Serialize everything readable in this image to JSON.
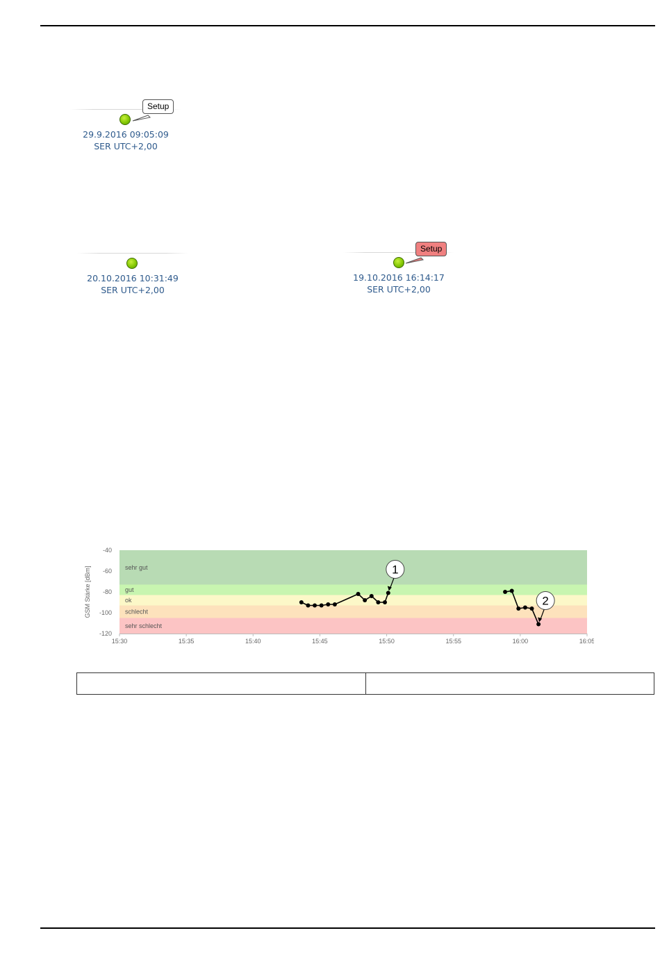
{
  "status_widgets": [
    {
      "timestamp": "29.9.2016 09:05:09",
      "timezone": "SER UTC+2,00",
      "badge": "Setup",
      "badge_color": "#ffffff"
    },
    {
      "timestamp": "20.10.2016 10:31:49",
      "timezone": "SER UTC+2,00"
    },
    {
      "timestamp": "19.10.2016 16:14:17",
      "timezone": "SER UTC+2,00",
      "badge": "Setup",
      "badge_color": "#f08080"
    }
  ],
  "chart_data": {
    "type": "line",
    "ylabel": "GSM Stärke [dBm]",
    "xlabel": "",
    "ylim": [
      -120,
      -40
    ],
    "yticks": [
      "-40",
      "-60",
      "-80",
      "-100",
      "-120"
    ],
    "xlim": [
      "15:30",
      "16:05"
    ],
    "xticks": [
      "15:30",
      "15:35",
      "15:40",
      "15:45",
      "15:50",
      "15:55",
      "16:00",
      "16:05"
    ],
    "bands": [
      {
        "label": "sehr gut",
        "from": -73,
        "to": -40,
        "color": "#b8dbb4"
      },
      {
        "label": "gut",
        "from": -83,
        "to": -73,
        "color": "#c8f5b0"
      },
      {
        "label": "ok",
        "from": -93,
        "to": -83,
        "color": "#fcf8c8"
      },
      {
        "label": "schlecht",
        "from": -105,
        "to": -93,
        "color": "#fde2bc"
      },
      {
        "label": "sehr schlecht",
        "from": -120,
        "to": -105,
        "color": "#fcc4c4"
      }
    ],
    "series": [
      {
        "segments": [
          [
            [
              "15:43:37",
              -90
            ],
            [
              "15:44:07",
              -93
            ],
            [
              "15:44:37",
              -93
            ],
            [
              "15:45:07",
              -93
            ],
            [
              "15:45:37",
              -92
            ],
            [
              "15:46:07",
              -92
            ],
            [
              "15:47:52",
              -82
            ],
            [
              "15:48:22",
              -88
            ],
            [
              "15:48:52",
              -84
            ],
            [
              "15:49:22",
              -90
            ],
            [
              "15:49:52",
              -90
            ],
            [
              "15:50:07",
              -81
            ]
          ],
          [
            [
              "15:58:52",
              -80
            ],
            [
              "15:59:22",
              -79
            ],
            [
              "15:59:52",
              -96
            ],
            [
              "16:00:22",
              -95
            ],
            [
              "16:00:52",
              -96
            ],
            [
              "16:01:22",
              -111
            ]
          ]
        ]
      }
    ],
    "callouts": [
      {
        "label": "1",
        "at": [
          "15:50:07",
          -81
        ]
      },
      {
        "label": "2",
        "at": [
          "16:01:22",
          -111
        ]
      }
    ]
  }
}
